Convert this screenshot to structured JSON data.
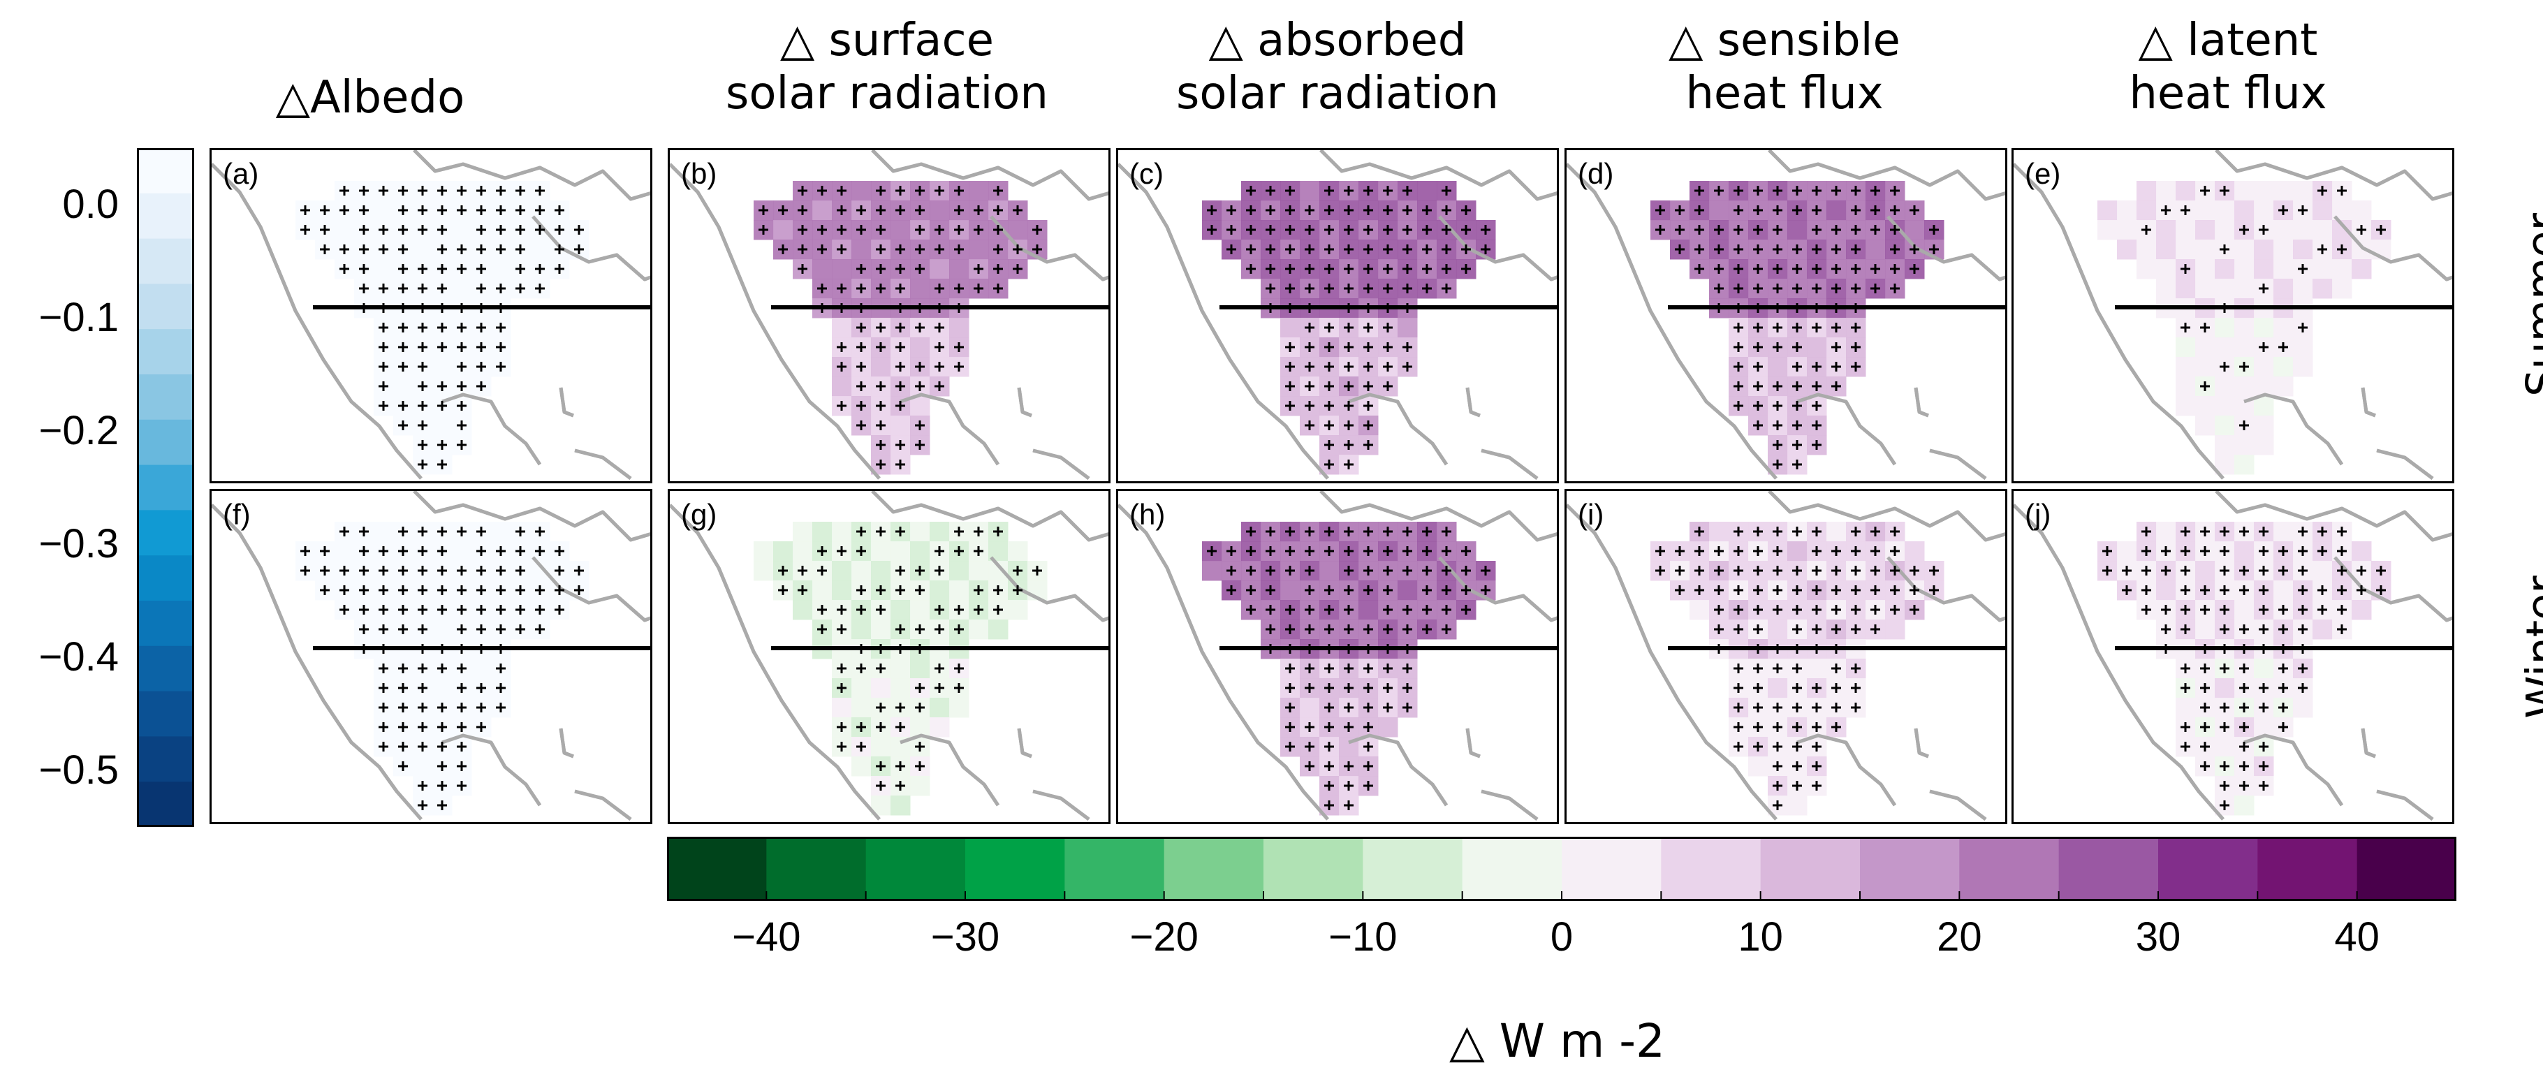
{
  "column_titles": [
    "△Albedo",
    "△ surface\nsolar radiation",
    "△ absorbed\nsolar radiation",
    "△ sensible\nheat flux",
    "△ latent\nheat flux"
  ],
  "row_labels": [
    "Summer",
    "Winter"
  ],
  "panels": [
    {
      "label": "(a)",
      "variable": "albedo",
      "season": "Summer",
      "fill": 0.1,
      "cmap": "blue",
      "stipple": 0.9
    },
    {
      "label": "(b)",
      "variable": "surface_solar",
      "season": "Summer",
      "fill": 18,
      "cmap": "div",
      "stipple": 0.8
    },
    {
      "label": "(c)",
      "variable": "absorbed_solar",
      "season": "Summer",
      "fill": 22,
      "cmap": "div",
      "stipple": 0.95
    },
    {
      "label": "(d)",
      "variable": "sensible_heat",
      "season": "Summer",
      "fill": 20,
      "cmap": "div",
      "stipple": 0.95
    },
    {
      "label": "(e)",
      "variable": "latent_heat",
      "season": "Summer",
      "fill": 3,
      "cmap": "div",
      "stipple": 0.25
    },
    {
      "label": "(f)",
      "variable": "albedo",
      "season": "Winter",
      "fill": 0.35,
      "cmap": "blue",
      "stipple": 0.9
    },
    {
      "label": "(g)",
      "variable": "surface_solar",
      "season": "Winter",
      "fill": -4,
      "cmap": "div",
      "stipple": 0.6
    },
    {
      "label": "(h)",
      "variable": "absorbed_solar",
      "season": "Winter",
      "fill": 20,
      "cmap": "div",
      "stipple": 0.95
    },
    {
      "label": "(i)",
      "variable": "sensible_heat",
      "season": "Winter",
      "fill": 6,
      "cmap": "div",
      "stipple": 0.9
    },
    {
      "label": "(j)",
      "variable": "latent_heat",
      "season": "Winter",
      "fill": 4,
      "cmap": "div",
      "stipple": 0.85
    }
  ],
  "albedo_colorbar": {
    "ticks": [
      "0.0",
      "−0.1",
      "−0.2",
      "−0.3",
      "−0.4",
      "−0.5"
    ],
    "range": [
      -0.55,
      0.05
    ],
    "colors": [
      "#f7fbff",
      "#e8f2fb",
      "#d6e8f5",
      "#c2def0",
      "#a7d3ea",
      "#8ac6e3",
      "#68b8dd",
      "#3aa7d8",
      "#119ad3",
      "#0a88c6",
      "#0b76b8",
      "#0c63a6",
      "#0b5194",
      "#0a4282",
      "#083571"
    ]
  },
  "flux_colorbar": {
    "ticks": [
      "−40",
      "−30",
      "−20",
      "−10",
      "0",
      "10",
      "20",
      "30",
      "40"
    ],
    "range": [
      -45,
      45
    ],
    "colors": [
      "#00441b",
      "#006d2c",
      "#00883a",
      "#00a247",
      "#34b567",
      "#7ccf8f",
      "#b0e2b4",
      "#d6efd6",
      "#eff7ee",
      "#f6eff6",
      "#ead4eb",
      "#dab8dc",
      "#c497c9",
      "#b077b5",
      "#9a58a3",
      "#822e8b",
      "#731472",
      "#49004b"
    ],
    "title": "△ W m -2"
  }
}
